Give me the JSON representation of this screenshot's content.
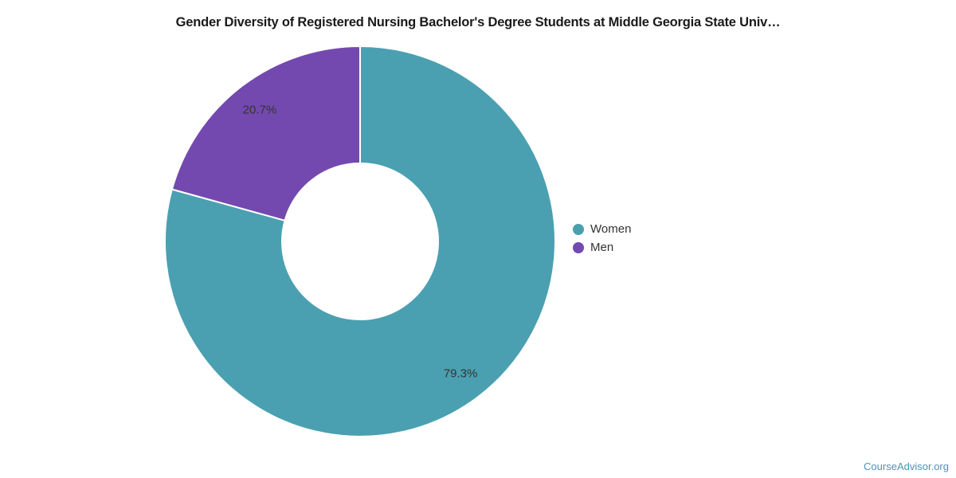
{
  "title": "Gender Diversity of Registered Nursing Bachelor's Degree Students at Middle Georgia State Univ…",
  "watermark": "CourseAdvisor.org",
  "colors": {
    "women": "#4aa0b1",
    "men": "#7349af",
    "slice_label_text": "#333333",
    "title_text": "#1a1a1a",
    "watermark_text": "#4e93b8",
    "slice_border": "#ffffff"
  },
  "chart_data": {
    "type": "pie",
    "subtype": "donut",
    "title": "Gender Diversity of Registered Nursing Bachelor's Degree Students at Middle Georgia State Univ…",
    "categories": [
      "Women",
      "Men"
    ],
    "values": [
      79.3,
      20.7
    ],
    "labels": [
      "79.3%",
      "20.7%"
    ],
    "colors": [
      "#4aa0b1",
      "#7349af"
    ],
    "start_angle_deg": 0,
    "direction": "clockwise",
    "donut_hole_ratio": 0.4,
    "legend_position": "right",
    "grid": false
  },
  "legend": {
    "items": [
      {
        "label": "Women",
        "color": "#4aa0b1"
      },
      {
        "label": "Men",
        "color": "#7349af"
      }
    ]
  }
}
